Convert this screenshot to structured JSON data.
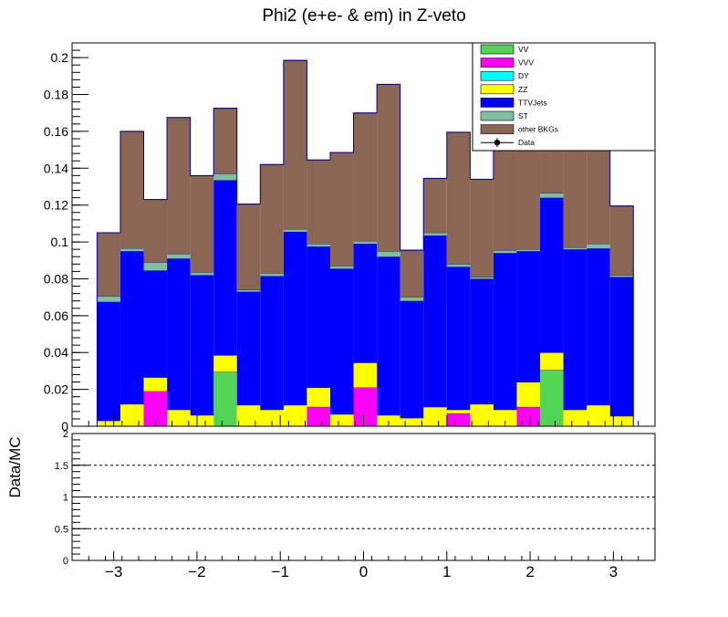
{
  "chart_data": {
    "type": "bar",
    "stacked": true,
    "title": "Phi2 (e+e- & em) in Z-veto",
    "x_edges": [
      -3.2,
      -2.92,
      -2.64,
      -2.36,
      -2.08,
      -1.8,
      -1.52,
      -1.24,
      -0.96,
      -0.68,
      -0.4,
      -0.12,
      0.16,
      0.44,
      0.72,
      1.0,
      1.28,
      1.56,
      1.84,
      2.12,
      2.4,
      2.68,
      2.96,
      3.24
    ],
    "xlim": [
      -3.5,
      3.5
    ],
    "ylim": [
      0,
      0.208
    ],
    "y_ticks": [
      {
        "v": 0,
        "label": "0"
      },
      {
        "v": 0.02,
        "label": "0.02"
      },
      {
        "v": 0.04,
        "label": "0.04"
      },
      {
        "v": 0.06,
        "label": "0.06"
      },
      {
        "v": 0.08,
        "label": "0.08"
      },
      {
        "v": 0.1,
        "label": "0.1"
      },
      {
        "v": 0.12,
        "label": "0.12"
      },
      {
        "v": 0.14,
        "label": "0.14"
      },
      {
        "v": 0.16,
        "label": "0.16"
      },
      {
        "v": 0.18,
        "label": "0.18"
      },
      {
        "v": 0.2,
        "label": "0.2"
      }
    ],
    "x_ticks": [
      {
        "v": -3,
        "label": "−3"
      },
      {
        "v": -2,
        "label": "−2"
      },
      {
        "v": -1,
        "label": "−1"
      },
      {
        "v": 0,
        "label": "0"
      },
      {
        "v": 1,
        "label": "1"
      },
      {
        "v": 2,
        "label": "2"
      },
      {
        "v": 3,
        "label": "3"
      }
    ],
    "series": [
      {
        "name": "VV",
        "color": "#54d454",
        "values": [
          0,
          0,
          0,
          0,
          0,
          0.0295,
          0,
          0,
          0,
          0,
          0,
          0,
          0,
          0,
          0,
          0,
          0,
          0,
          0,
          0.0305,
          0,
          0,
          0
        ]
      },
      {
        "name": "VVV",
        "color": "#ff00ff",
        "values": [
          0,
          0,
          0.019,
          0,
          0,
          0,
          0,
          0,
          0,
          0.0105,
          0,
          0.021,
          0,
          0,
          0,
          0.007,
          0,
          0,
          0.0105,
          0,
          0,
          0,
          0
        ]
      },
      {
        "name": "DY",
        "color": "#00ffff",
        "values": [
          0,
          0,
          0,
          0,
          0,
          0,
          0,
          0,
          0,
          0,
          0,
          0,
          0,
          0,
          0,
          0,
          0,
          0,
          0,
          0,
          0,
          0,
          0
        ]
      },
      {
        "name": "ZZ",
        "color": "#ffff00",
        "values": [
          0.003,
          0.012,
          0.0075,
          0.009,
          0.006,
          0.009,
          0.0115,
          0.009,
          0.0115,
          0.0105,
          0.0065,
          0.0135,
          0.006,
          0.0045,
          0.0105,
          0.002,
          0.012,
          0.009,
          0.0135,
          0.0095,
          0.009,
          0.0115,
          0.0055
        ]
      },
      {
        "name": "TTVJets",
        "color": "#0000ff",
        "values": [
          0.0645,
          0.083,
          0.058,
          0.082,
          0.076,
          0.095,
          0.0615,
          0.0725,
          0.094,
          0.0765,
          0.079,
          0.0645,
          0.086,
          0.0635,
          0.093,
          0.0775,
          0.068,
          0.085,
          0.071,
          0.084,
          0.087,
          0.085,
          0.0755
        ]
      },
      {
        "name": "ST",
        "color": "#7fbfa0",
        "values": [
          0.003,
          0.0015,
          0.0045,
          0.0025,
          0.0015,
          0.0035,
          0.001,
          0.0015,
          0.0015,
          0.0015,
          0.0015,
          0.0015,
          0.003,
          0.002,
          0.0015,
          0.0015,
          0.001,
          0.0015,
          0.001,
          0.0025,
          0.001,
          0.0025,
          0.001
        ]
      },
      {
        "name": "other BKGs",
        "color": "#8b6655",
        "values": [
          0.0345,
          0.0635,
          0.034,
          0.074,
          0.0525,
          0.0355,
          0.0465,
          0.059,
          0.0915,
          0.0455,
          0.0615,
          0.0695,
          0.0905,
          0.0255,
          0.0295,
          0.0715,
          0.053,
          0.056,
          0.0875,
          0.0725,
          0.0535,
          0.0565,
          0.0375
        ]
      }
    ],
    "data_series": {
      "name": "Data",
      "values": []
    },
    "legend": {
      "position": "top-right"
    },
    "ratio_panel": {
      "ylabel": "Data/MC",
      "ylim": [
        0,
        2
      ],
      "y_ticks": [
        {
          "v": 0,
          "label": "0"
        },
        {
          "v": 0.5,
          "label": "0.5"
        },
        {
          "v": 1,
          "label": "1"
        },
        {
          "v": 1.5,
          "label": "1.5"
        },
        {
          "v": 2,
          "label": "2"
        }
      ],
      "reference_lines": [
        0.5,
        1,
        1.5
      ]
    }
  }
}
